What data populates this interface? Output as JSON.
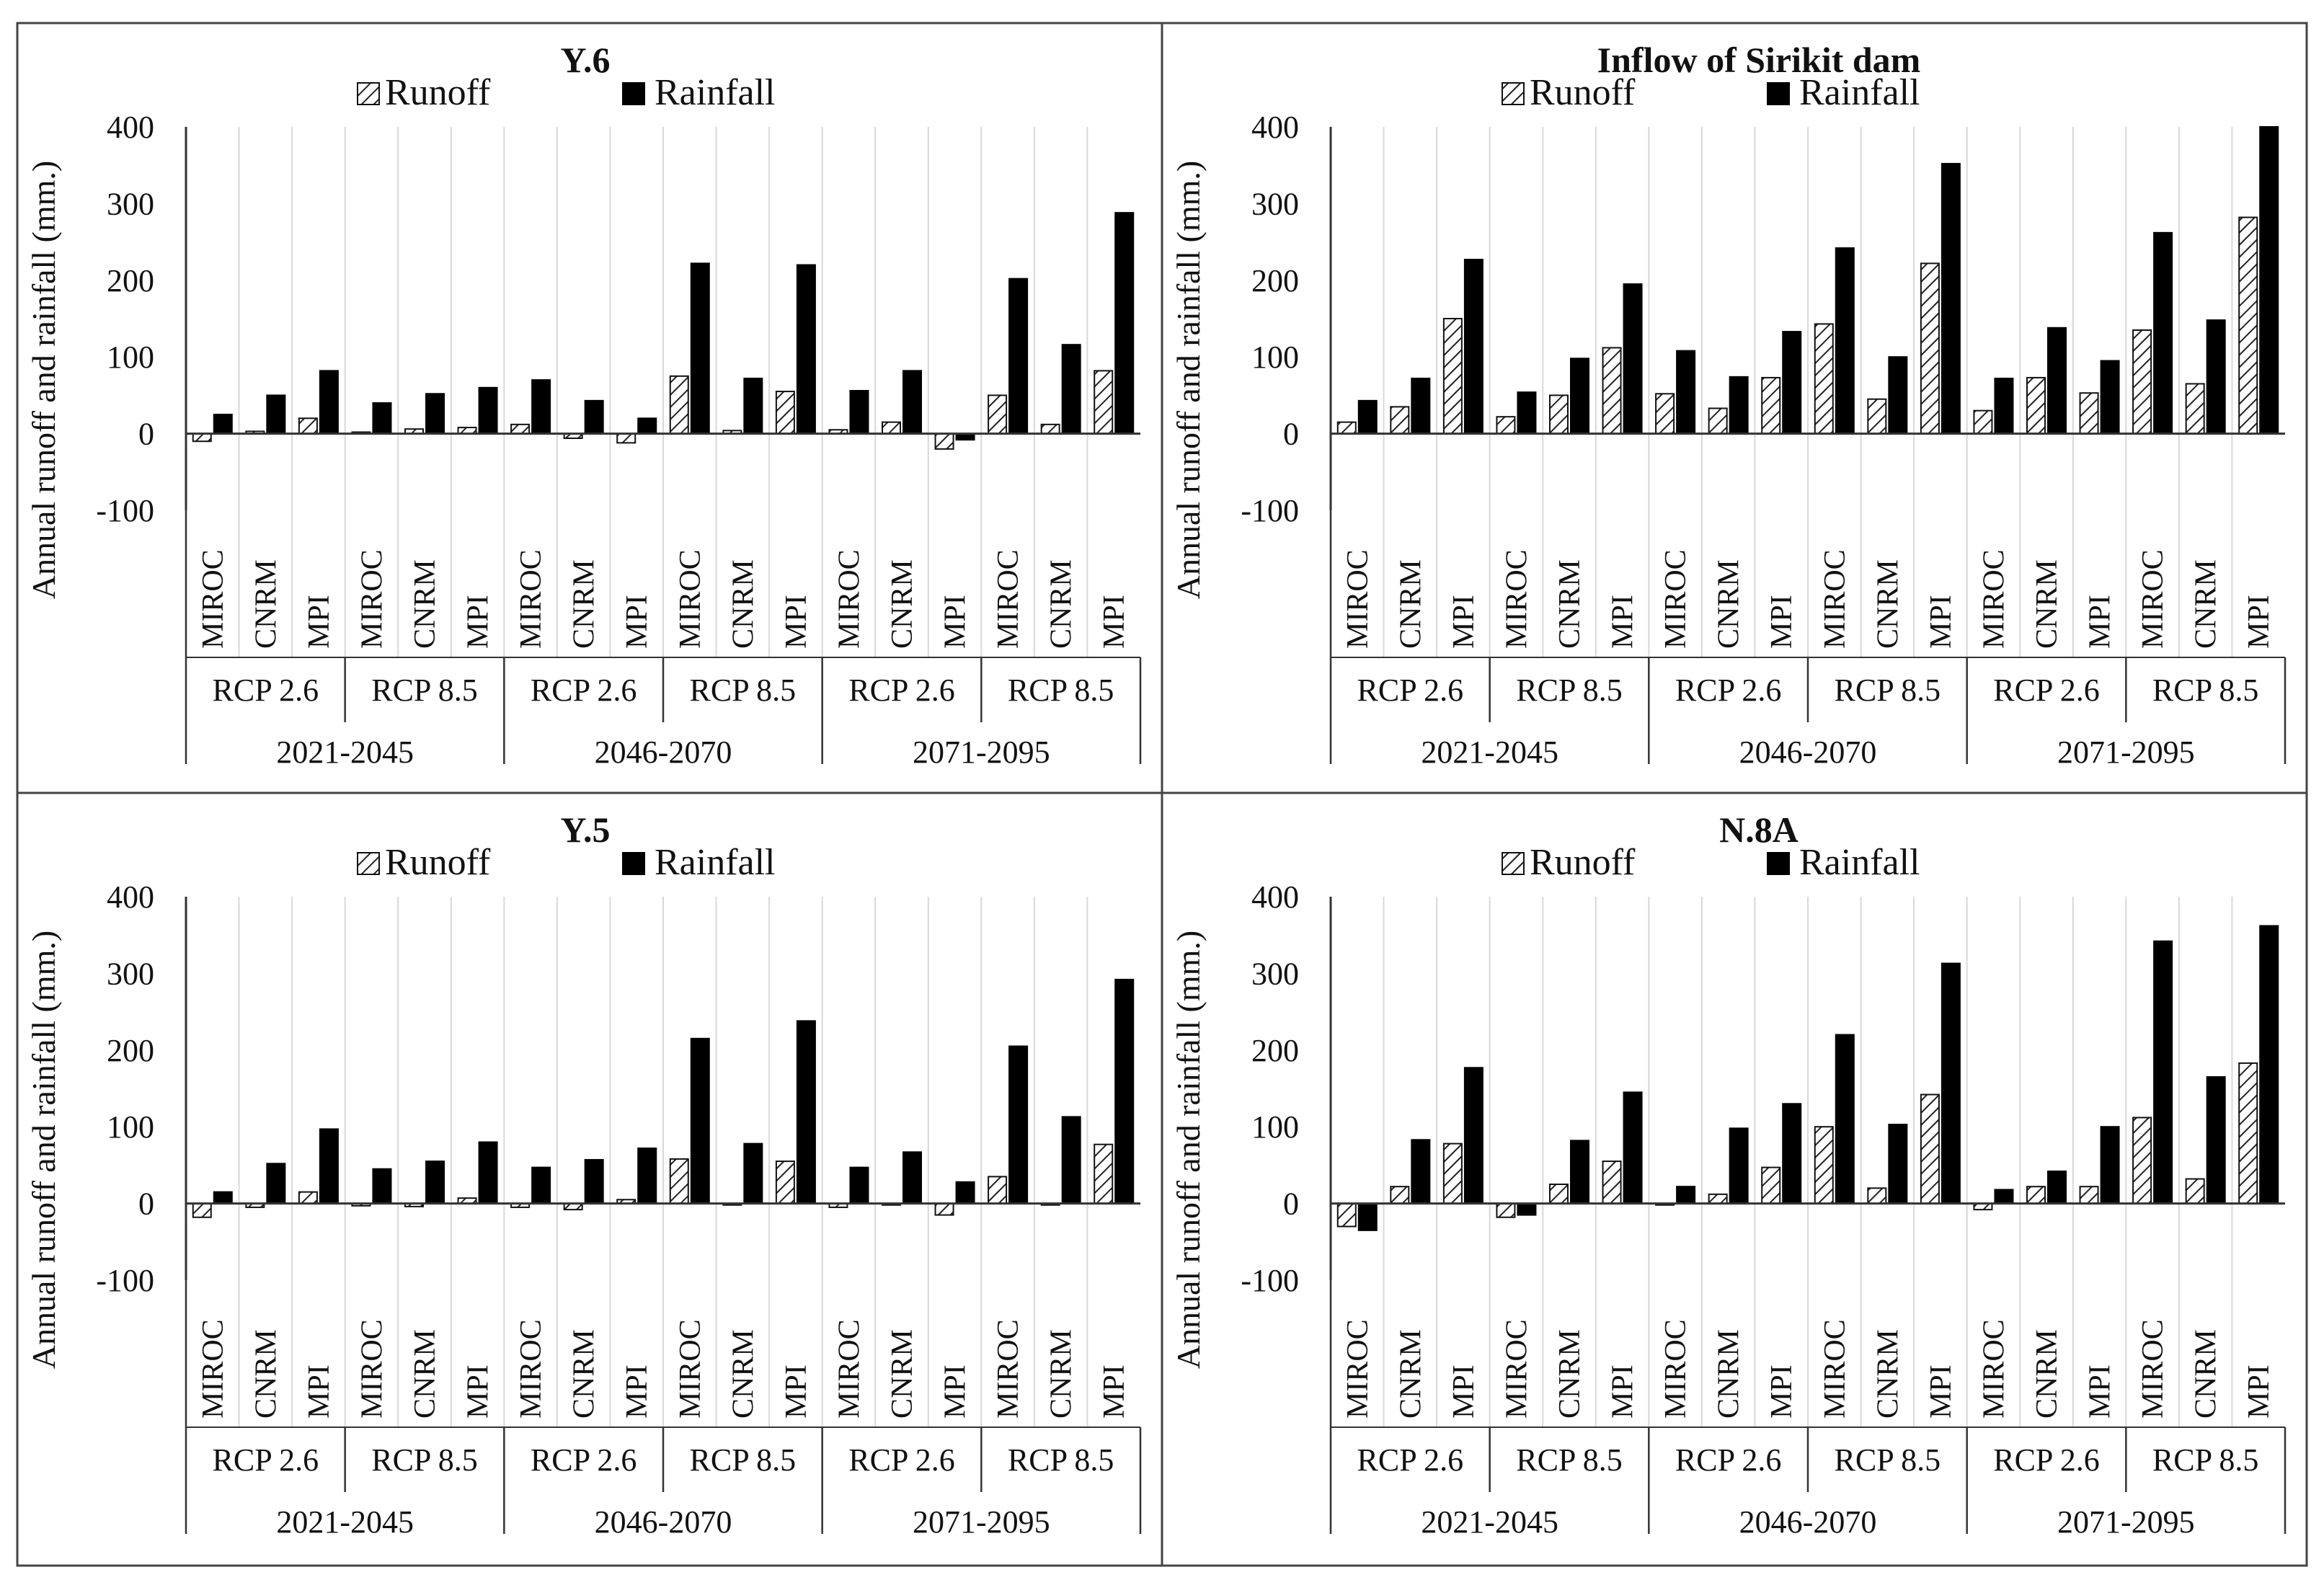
{
  "figure": {
    "panel_titles": [
      "Y.6",
      "Inflow of Sirikit dam",
      "Y.5",
      "N.8A"
    ]
  },
  "chart_data": [
    {
      "type": "bar",
      "title": "Y.6",
      "ylabel": "Annual runoff and rainfall (mm.)",
      "xlabel": "",
      "ylim": [
        -100,
        400
      ],
      "yticks": [
        "-100",
        "0",
        "100",
        "200",
        "300",
        "400"
      ],
      "ytick_values": [
        -100,
        0,
        100,
        200,
        300,
        400
      ],
      "legend": [
        "Runoff",
        "Rainfall"
      ],
      "legend_position": "top",
      "categories": [
        "MIROC",
        "CNRM",
        "MPI",
        "MIROC",
        "CNRM",
        "MPI",
        "MIROC",
        "CNRM",
        "MPI",
        "MIROC",
        "CNRM",
        "MPI",
        "MIROC",
        "CNRM",
        "MPI",
        "MIROC",
        "CNRM",
        "MPI"
      ],
      "scenario_labels": [
        "RCP 2.6",
        "RCP 8.5",
        "RCP 2.6",
        "RCP 8.5",
        "RCP 2.6",
        "RCP 8.5"
      ],
      "period_labels": [
        "2021-2045",
        "2046-2070",
        "2071-2095"
      ],
      "series": [
        {
          "name": "Runoff",
          "values": [
            -10,
            3,
            20,
            2,
            6,
            8,
            12,
            -6,
            -12,
            75,
            4,
            55,
            5,
            15,
            -20,
            50,
            12,
            82
          ]
        },
        {
          "name": "Rainfall",
          "values": [
            25,
            50,
            82,
            40,
            52,
            60,
            70,
            43,
            20,
            222,
            72,
            220,
            56,
            82,
            -8,
            202,
            116,
            288
          ]
        }
      ]
    },
    {
      "type": "bar",
      "title": "Inflow of Sirikit dam",
      "ylabel": "Annual runoff and rainfall (mm.)",
      "xlabel": "",
      "ylim": [
        -100,
        400
      ],
      "yticks": [
        "-100",
        "0",
        "100",
        "200",
        "300",
        "400"
      ],
      "ytick_values": [
        -100,
        0,
        100,
        200,
        300,
        400
      ],
      "legend": [
        "Runoff",
        "Rainfall"
      ],
      "legend_position": "top",
      "categories": [
        "MIROC",
        "CNRM",
        "MPI",
        "MIROC",
        "CNRM",
        "MPI",
        "MIROC",
        "CNRM",
        "MPI",
        "MIROC",
        "CNRM",
        "MPI",
        "MIROC",
        "CNRM",
        "MPI",
        "MIROC",
        "CNRM",
        "MPI"
      ],
      "scenario_labels": [
        "RCP 2.6",
        "RCP 8.5",
        "RCP 2.6",
        "RCP 8.5",
        "RCP 2.6",
        "RCP 8.5"
      ],
      "period_labels": [
        "2021-2045",
        "2046-2070",
        "2071-2095"
      ],
      "series": [
        {
          "name": "Runoff",
          "values": [
            15,
            35,
            150,
            22,
            50,
            112,
            52,
            33,
            73,
            143,
            45,
            222,
            30,
            73,
            53,
            135,
            65,
            282
          ]
        },
        {
          "name": "Rainfall",
          "values": [
            43,
            72,
            227,
            54,
            98,
            195,
            108,
            74,
            133,
            242,
            100,
            352,
            72,
            138,
            95,
            262,
            148,
            400
          ]
        }
      ]
    },
    {
      "type": "bar",
      "title": "Y.5",
      "ylabel": "Annual runoff and rainfall (mm.)",
      "xlabel": "",
      "ylim": [
        -100,
        400
      ],
      "yticks": [
        "-100",
        "0",
        "100",
        "200",
        "300",
        "400"
      ],
      "ytick_values": [
        -100,
        0,
        100,
        200,
        300,
        400
      ],
      "legend": [
        "Runoff",
        "Rainfall"
      ],
      "legend_position": "top",
      "categories": [
        "MIROC",
        "CNRM",
        "MPI",
        "MIROC",
        "CNRM",
        "MPI",
        "MIROC",
        "CNRM",
        "MPI",
        "MIROC",
        "CNRM",
        "MPI",
        "MIROC",
        "CNRM",
        "MPI",
        "MIROC",
        "CNRM",
        "MPI"
      ],
      "scenario_labels": [
        "RCP 2.6",
        "RCP 8.5",
        "RCP 2.6",
        "RCP 8.5",
        "RCP 2.6",
        "RCP 8.5"
      ],
      "period_labels": [
        "2021-2045",
        "2046-2070",
        "2071-2095"
      ],
      "series": [
        {
          "name": "Runoff",
          "values": [
            -18,
            -5,
            15,
            -3,
            -4,
            7,
            -5,
            -8,
            5,
            58,
            -2,
            55,
            -5,
            -2,
            -15,
            35,
            -2,
            77
          ]
        },
        {
          "name": "Rainfall",
          "values": [
            15,
            52,
            97,
            45,
            55,
            80,
            47,
            57,
            72,
            215,
            78,
            238,
            47,
            67,
            28,
            205,
            113,
            292
          ]
        }
      ]
    },
    {
      "type": "bar",
      "title": "N.8A",
      "ylabel": "Annual runoff and rainfall (mm.)",
      "xlabel": "",
      "ylim": [
        -100,
        400
      ],
      "yticks": [
        "-100",
        "0",
        "100",
        "200",
        "300",
        "400"
      ],
      "ytick_values": [
        -100,
        0,
        100,
        200,
        300,
        400
      ],
      "legend": [
        "Runoff",
        "Rainfall"
      ],
      "legend_position": "top",
      "categories": [
        "MIROC",
        "CNRM",
        "MPI",
        "MIROC",
        "CNRM",
        "MPI",
        "MIROC",
        "CNRM",
        "MPI",
        "MIROC",
        "CNRM",
        "MPI",
        "MIROC",
        "CNRM",
        "MPI",
        "MIROC",
        "CNRM",
        "MPI"
      ],
      "scenario_labels": [
        "RCP 2.6",
        "RCP 8.5",
        "RCP 2.6",
        "RCP 8.5",
        "RCP 2.6",
        "RCP 8.5"
      ],
      "period_labels": [
        "2021-2045",
        "2046-2070",
        "2071-2095"
      ],
      "series": [
        {
          "name": "Runoff",
          "values": [
            -30,
            22,
            78,
            -18,
            25,
            55,
            -2,
            12,
            47,
            100,
            20,
            142,
            -8,
            22,
            22,
            112,
            32,
            183
          ]
        },
        {
          "name": "Rainfall",
          "values": [
            -35,
            83,
            177,
            -15,
            82,
            145,
            22,
            98,
            130,
            220,
            103,
            313,
            18,
            42,
            100,
            342,
            165,
            362
          ]
        }
      ]
    }
  ]
}
